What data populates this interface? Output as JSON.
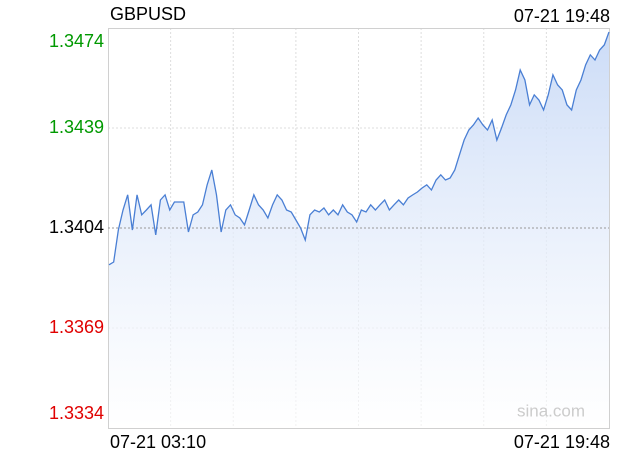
{
  "chart_data": {
    "type": "line",
    "title": "GBPUSD",
    "timestamp": "07-21 19:48",
    "x_start_label": "07-21 03:10",
    "x_end_label": "07-21 19:48",
    "watermark": "sina.com",
    "ylim": [
      1.3334,
      1.3474
    ],
    "yticks": [
      1.3334,
      1.3369,
      1.3404,
      1.3439,
      1.3474
    ],
    "reference": 1.3404,
    "colors": {
      "up": "#009900",
      "down": "#e00000",
      "flat": "#000000",
      "line": "#4a7fd4",
      "area": "#c6d8f6"
    },
    "values": [
      1.33911,
      1.33921,
      1.34033,
      1.34103,
      1.34156,
      1.34033,
      1.34156,
      1.34086,
      1.34103,
      1.34121,
      1.34016,
      1.34138,
      1.34156,
      1.34103,
      1.34131,
      1.34131,
      1.34131,
      1.34026,
      1.34086,
      1.34096,
      1.34121,
      1.34191,
      1.34243,
      1.34156,
      1.34026,
      1.34103,
      1.34121,
      1.34086,
      1.34075,
      1.34051,
      1.34103,
      1.34156,
      1.34121,
      1.34103,
      1.34075,
      1.34121,
      1.34156,
      1.34138,
      1.34103,
      1.34096,
      1.34068,
      1.3404,
      1.33998,
      1.34086,
      1.34103,
      1.34096,
      1.3411,
      1.34086,
      1.34103,
      1.34086,
      1.34121,
      1.34096,
      1.34086,
      1.34061,
      1.34103,
      1.34096,
      1.34121,
      1.34103,
      1.34121,
      1.34138,
      1.34103,
      1.34121,
      1.34138,
      1.34121,
      1.34145,
      1.34156,
      1.34166,
      1.3418,
      1.34191,
      1.34173,
      1.34208,
      1.34226,
      1.34208,
      1.34215,
      1.34243,
      1.34296,
      1.34348,
      1.34383,
      1.34401,
      1.34425,
      1.34401,
      1.34383,
      1.34418,
      1.34348,
      1.3439,
      1.34436,
      1.34471,
      1.34523,
      1.34593,
      1.34558,
      1.34471,
      1.34506,
      1.34488,
      1.34453,
      1.34506,
      1.34576,
      1.34541,
      1.34523,
      1.34471,
      1.34453,
      1.34523,
      1.34558,
      1.34611,
      1.34646,
      1.34628,
      1.34663,
      1.34681,
      1.34726
    ]
  }
}
